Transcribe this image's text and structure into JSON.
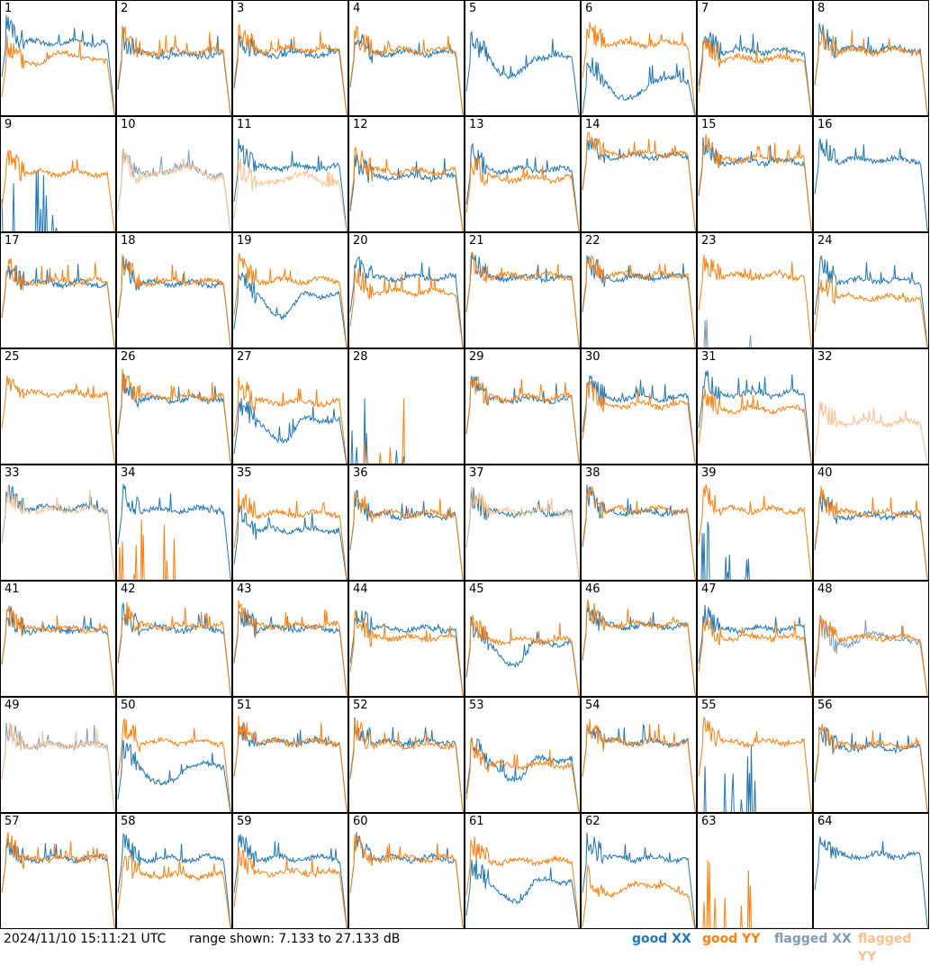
{
  "footer": {
    "timestamp": "2024/11/10 15:11:21 UTC",
    "range_text": "range shown: 7.133 to 27.133 dB"
  },
  "legend": [
    {
      "label": "good XX",
      "color": "#1f77b4"
    },
    {
      "label": "good YY",
      "color": "#ff7f0e"
    },
    {
      "label": "flagged XX",
      "color": "#7f9bb5"
    },
    {
      "label": "flagged YY",
      "color": "#fbc08f"
    }
  ],
  "chart_data": {
    "type": "line",
    "grid_cols": 8,
    "grid_rows": 8,
    "ylim": [
      7.133,
      27.133
    ],
    "y_units": "dB",
    "colors": {
      "good_xx": "#1f77b4",
      "good_yy": "#ff7f0e",
      "flagged_xx": "#7f9bb5",
      "flagged_yy": "#fbc08f"
    },
    "panels": [
      {
        "id": "1",
        "xx": "good",
        "yy": "good",
        "xx_level": 20.0,
        "yy_level": 16.5,
        "xx_shape": "normal",
        "yy_shape": "hump"
      },
      {
        "id": "2",
        "xx": "good",
        "yy": "good",
        "xx_level": 17.8,
        "yy_level": 18.4,
        "xx_shape": "normal",
        "yy_shape": "normal"
      },
      {
        "id": "3",
        "xx": "good",
        "yy": "good",
        "xx_level": 18.0,
        "yy_level": 18.8,
        "xx_shape": "normal",
        "yy_shape": "normal"
      },
      {
        "id": "4",
        "xx": "good",
        "yy": "good",
        "xx_level": 18.2,
        "yy_level": 18.6,
        "xx_shape": "normal",
        "yy_shape": "normal"
      },
      {
        "id": "5",
        "xx": "good",
        "yy": "good",
        "xx_level": 17.5,
        "yy_level": 7.4,
        "xx_shape": "dip",
        "yy_shape": "flat_zero"
      },
      {
        "id": "6",
        "xx": "good",
        "yy": "good",
        "xx_level": 13.5,
        "yy_level": 19.8,
        "xx_shape": "dip",
        "yy_shape": "normal"
      },
      {
        "id": "7",
        "xx": "good",
        "yy": "good",
        "xx_level": 18.5,
        "yy_level": 17.2,
        "xx_shape": "normal",
        "yy_shape": "normal"
      },
      {
        "id": "8",
        "xx": "good",
        "yy": "good",
        "xx_level": 18.8,
        "yy_level": 18.5,
        "xx_shape": "normal",
        "yy_shape": "normal"
      },
      {
        "id": "9",
        "xx": "good",
        "yy": "good",
        "xx_level": 7.4,
        "yy_level": 17.5,
        "xx_shape": "spikes",
        "yy_shape": "normal"
      },
      {
        "id": "10",
        "xx": "flagged",
        "yy": "flagged",
        "xx_level": 17.0,
        "yy_level": 16.8,
        "xx_shape": "hump",
        "yy_shape": "hump"
      },
      {
        "id": "11",
        "xx": "good",
        "yy": "flagged",
        "xx_level": 18.5,
        "yy_level": 15.5,
        "xx_shape": "normal",
        "yy_shape": "hump"
      },
      {
        "id": "12",
        "xx": "good",
        "yy": "good",
        "xx_level": 16.8,
        "yy_level": 17.8,
        "xx_shape": "normal",
        "yy_shape": "normal"
      },
      {
        "id": "13",
        "xx": "good",
        "yy": "good",
        "xx_level": 18.0,
        "yy_level": 16.5,
        "xx_shape": "normal",
        "yy_shape": "normal"
      },
      {
        "id": "14",
        "xx": "good",
        "yy": "good",
        "xx_level": 20.5,
        "yy_level": 20.8,
        "xx_shape": "normal",
        "yy_shape": "normal"
      },
      {
        "id": "15",
        "xx": "good",
        "yy": "good",
        "xx_level": 19.5,
        "yy_level": 20.0,
        "xx_shape": "normal",
        "yy_shape": "normal"
      },
      {
        "id": "16",
        "xx": "good",
        "yy": "flagged",
        "xx_level": 19.8,
        "yy_level": 7.4,
        "xx_shape": "normal",
        "yy_shape": "flat_zero"
      },
      {
        "id": "17",
        "xx": "good",
        "yy": "good",
        "xx_level": 18.5,
        "yy_level": 18.8,
        "xx_shape": "normal",
        "yy_shape": "normal"
      },
      {
        "id": "18",
        "xx": "good",
        "yy": "good",
        "xx_level": 18.5,
        "yy_level": 18.8,
        "xx_shape": "normal",
        "yy_shape": "normal"
      },
      {
        "id": "19",
        "xx": "good",
        "yy": "good",
        "xx_level": 16.5,
        "yy_level": 19.0,
        "xx_shape": "dip",
        "yy_shape": "normal"
      },
      {
        "id": "20",
        "xx": "good",
        "yy": "good",
        "xx_level": 19.5,
        "yy_level": 17.0,
        "xx_shape": "normal",
        "yy_shape": "normal"
      },
      {
        "id": "21",
        "xx": "good",
        "yy": "good",
        "xx_level": 19.5,
        "yy_level": 19.8,
        "xx_shape": "normal",
        "yy_shape": "normal"
      },
      {
        "id": "22",
        "xx": "good",
        "yy": "good",
        "xx_level": 19.5,
        "yy_level": 20.0,
        "xx_shape": "normal",
        "yy_shape": "normal"
      },
      {
        "id": "23",
        "xx": "flagged",
        "yy": "good",
        "xx_level": 14.0,
        "yy_level": 19.8,
        "xx_shape": "spikes",
        "yy_shape": "normal"
      },
      {
        "id": "24",
        "xx": "good",
        "yy": "good",
        "xx_level": 19.0,
        "yy_level": 16.0,
        "xx_shape": "normal",
        "yy_shape": "normal"
      },
      {
        "id": "25",
        "xx": "good",
        "yy": "good",
        "xx_level": 7.4,
        "yy_level": 19.5,
        "xx_shape": "flat_zero",
        "yy_shape": "normal"
      },
      {
        "id": "26",
        "xx": "good",
        "yy": "good",
        "xx_level": 18.5,
        "yy_level": 19.0,
        "xx_shape": "normal",
        "yy_shape": "normal"
      },
      {
        "id": "27",
        "xx": "good",
        "yy": "good",
        "xx_level": 15.0,
        "yy_level": 18.0,
        "xx_shape": "dip",
        "yy_shape": "normal"
      },
      {
        "id": "28",
        "xx": "good",
        "yy": "good",
        "xx_level": 7.4,
        "yy_level": 7.4,
        "xx_shape": "spikes",
        "yy_shape": "spikes"
      },
      {
        "id": "29",
        "xx": "good",
        "yy": "good",
        "xx_level": 18.5,
        "yy_level": 18.8,
        "xx_shape": "normal",
        "yy_shape": "normal"
      },
      {
        "id": "30",
        "xx": "good",
        "yy": "good",
        "xx_level": 18.8,
        "yy_level": 17.5,
        "xx_shape": "normal",
        "yy_shape": "normal"
      },
      {
        "id": "31",
        "xx": "good",
        "yy": "good",
        "xx_level": 19.5,
        "yy_level": 16.8,
        "xx_shape": "normal",
        "yy_shape": "normal"
      },
      {
        "id": "32",
        "xx": "flagged",
        "yy": "flagged",
        "xx_level": 7.4,
        "yy_level": 14.5,
        "xx_shape": "flat_zero",
        "yy_shape": "normal"
      },
      {
        "id": "33",
        "xx": "good",
        "yy": "flagged",
        "xx_level": 19.8,
        "yy_level": 19.5,
        "xx_shape": "normal",
        "yy_shape": "normal"
      },
      {
        "id": "34",
        "xx": "good",
        "yy": "good",
        "xx_level": 19.5,
        "yy_level": 7.4,
        "xx_shape": "normal",
        "yy_shape": "spikes"
      },
      {
        "id": "35",
        "xx": "good",
        "yy": "good",
        "xx_level": 16.0,
        "yy_level": 18.8,
        "xx_shape": "normal",
        "yy_shape": "normal"
      },
      {
        "id": "36",
        "xx": "good",
        "yy": "good",
        "xx_level": 18.5,
        "yy_level": 18.8,
        "xx_shape": "normal",
        "yy_shape": "normal"
      },
      {
        "id": "37",
        "xx": "good",
        "yy": "flagged",
        "xx_level": 19.0,
        "yy_level": 19.2,
        "xx_shape": "normal",
        "yy_shape": "normal"
      },
      {
        "id": "38",
        "xx": "good",
        "yy": "good",
        "xx_level": 19.0,
        "yy_level": 19.5,
        "xx_shape": "normal",
        "yy_shape": "normal"
      },
      {
        "id": "39",
        "xx": "good",
        "yy": "good",
        "xx_level": 7.4,
        "yy_level": 19.5,
        "xx_shape": "spikes",
        "yy_shape": "normal"
      },
      {
        "id": "40",
        "xx": "good",
        "yy": "good",
        "xx_level": 18.5,
        "yy_level": 19.0,
        "xx_shape": "normal",
        "yy_shape": "normal"
      },
      {
        "id": "41",
        "xx": "good",
        "yy": "good",
        "xx_level": 18.8,
        "yy_level": 19.0,
        "xx_shape": "normal",
        "yy_shape": "normal"
      },
      {
        "id": "42",
        "xx": "good",
        "yy": "good",
        "xx_level": 19.0,
        "yy_level": 19.5,
        "xx_shape": "normal",
        "yy_shape": "normal"
      },
      {
        "id": "43",
        "xx": "good",
        "yy": "good",
        "xx_level": 19.0,
        "yy_level": 19.5,
        "xx_shape": "normal",
        "yy_shape": "normal"
      },
      {
        "id": "44",
        "xx": "good",
        "yy": "good",
        "xx_level": 19.0,
        "yy_level": 17.5,
        "xx_shape": "normal",
        "yy_shape": "normal"
      },
      {
        "id": "45",
        "xx": "good",
        "yy": "good",
        "xx_level": 16.5,
        "yy_level": 17.0,
        "xx_shape": "dip",
        "yy_shape": "normal"
      },
      {
        "id": "46",
        "xx": "good",
        "yy": "good",
        "xx_level": 19.5,
        "yy_level": 19.8,
        "xx_shape": "normal",
        "yy_shape": "normal"
      },
      {
        "id": "47",
        "xx": "good",
        "yy": "good",
        "xx_level": 19.0,
        "yy_level": 17.5,
        "xx_shape": "normal",
        "yy_shape": "normal"
      },
      {
        "id": "48",
        "xx": "flagged",
        "yy": "good",
        "xx_level": 16.5,
        "yy_level": 17.5,
        "xx_shape": "hump",
        "yy_shape": "normal"
      },
      {
        "id": "49",
        "xx": "flagged",
        "yy": "flagged",
        "xx_level": 19.0,
        "yy_level": 19.0,
        "xx_shape": "normal",
        "yy_shape": "normal"
      },
      {
        "id": "50",
        "xx": "good",
        "yy": "good",
        "xx_level": 15.5,
        "yy_level": 19.5,
        "xx_shape": "dip",
        "yy_shape": "normal"
      },
      {
        "id": "51",
        "xx": "good",
        "yy": "good",
        "xx_level": 19.5,
        "yy_level": 19.5,
        "xx_shape": "normal",
        "yy_shape": "normal"
      },
      {
        "id": "52",
        "xx": "good",
        "yy": "good",
        "xx_level": 19.5,
        "yy_level": 19.0,
        "xx_shape": "normal",
        "yy_shape": "normal"
      },
      {
        "id": "53",
        "xx": "good",
        "yy": "good",
        "xx_level": 16.5,
        "yy_level": 15.5,
        "xx_shape": "dip",
        "yy_shape": "normal"
      },
      {
        "id": "54",
        "xx": "good",
        "yy": "good",
        "xx_level": 19.5,
        "yy_level": 19.5,
        "xx_shape": "normal",
        "yy_shape": "normal"
      },
      {
        "id": "55",
        "xx": "good",
        "yy": "good",
        "xx_level": 7.4,
        "yy_level": 19.5,
        "xx_shape": "spikes",
        "yy_shape": "normal"
      },
      {
        "id": "56",
        "xx": "good",
        "yy": "good",
        "xx_level": 18.5,
        "yy_level": 19.0,
        "xx_shape": "normal",
        "yy_shape": "normal"
      },
      {
        "id": "57",
        "xx": "good",
        "yy": "good",
        "xx_level": 19.5,
        "yy_level": 19.5,
        "xx_shape": "normal",
        "yy_shape": "normal"
      },
      {
        "id": "58",
        "xx": "good",
        "yy": "good",
        "xx_level": 19.5,
        "yy_level": 16.5,
        "xx_shape": "normal",
        "yy_shape": "normal"
      },
      {
        "id": "59",
        "xx": "good",
        "yy": "good",
        "xx_level": 19.5,
        "yy_level": 17.0,
        "xx_shape": "normal",
        "yy_shape": "normal"
      },
      {
        "id": "60",
        "xx": "good",
        "yy": "good",
        "xx_level": 19.5,
        "yy_level": 19.5,
        "xx_shape": "normal",
        "yy_shape": "normal"
      },
      {
        "id": "61",
        "xx": "good",
        "yy": "good",
        "xx_level": 15.5,
        "yy_level": 19.0,
        "xx_shape": "dip",
        "yy_shape": "normal"
      },
      {
        "id": "62",
        "xx": "good",
        "yy": "good",
        "xx_level": 19.5,
        "yy_level": 13.5,
        "xx_shape": "normal",
        "yy_shape": "hump"
      },
      {
        "id": "63",
        "xx": "good",
        "yy": "good",
        "xx_level": 7.4,
        "yy_level": 7.4,
        "xx_shape": "flat_zero",
        "yy_shape": "spikes"
      },
      {
        "id": "64",
        "xx": "good",
        "yy": "good",
        "xx_level": 20.0,
        "yy_level": 7.4,
        "xx_shape": "normal",
        "yy_shape": "flat_zero"
      }
    ]
  }
}
